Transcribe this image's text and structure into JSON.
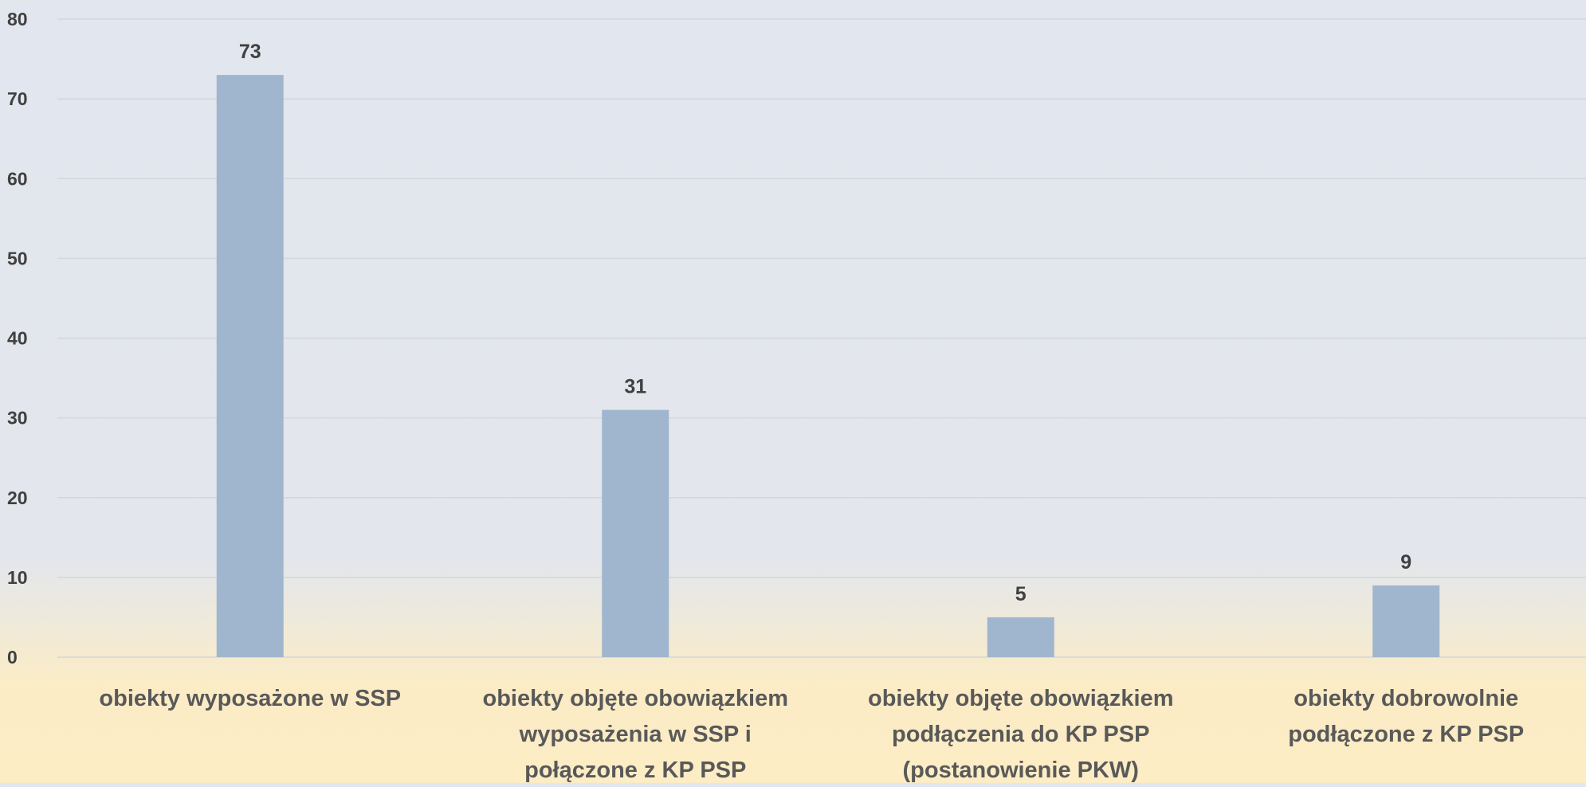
{
  "chart_data": {
    "type": "bar",
    "categories": [
      [
        "obiekty wyposażone w SSP"
      ],
      [
        "obiekty objęte obowiązkiem",
        "wyposażenia w SSP i",
        "połączone z KP PSP"
      ],
      [
        "obiekty objęte obowiązkiem",
        "podłączenia do KP PSP",
        "(postanowienie PKW)"
      ],
      [
        "obiekty dobrowolnie",
        "podłączone z KP PSP"
      ]
    ],
    "values": [
      73,
      31,
      5,
      9
    ],
    "ylim": [
      0,
      80
    ],
    "yticks": [
      0,
      10,
      20,
      30,
      40,
      50,
      60,
      70,
      80
    ],
    "grid": true,
    "legend": "none",
    "colors": {
      "bar": "#a0b6ce",
      "grid": "#d3d6dc",
      "tick_text": "#404040",
      "category_text": "#595959"
    }
  }
}
